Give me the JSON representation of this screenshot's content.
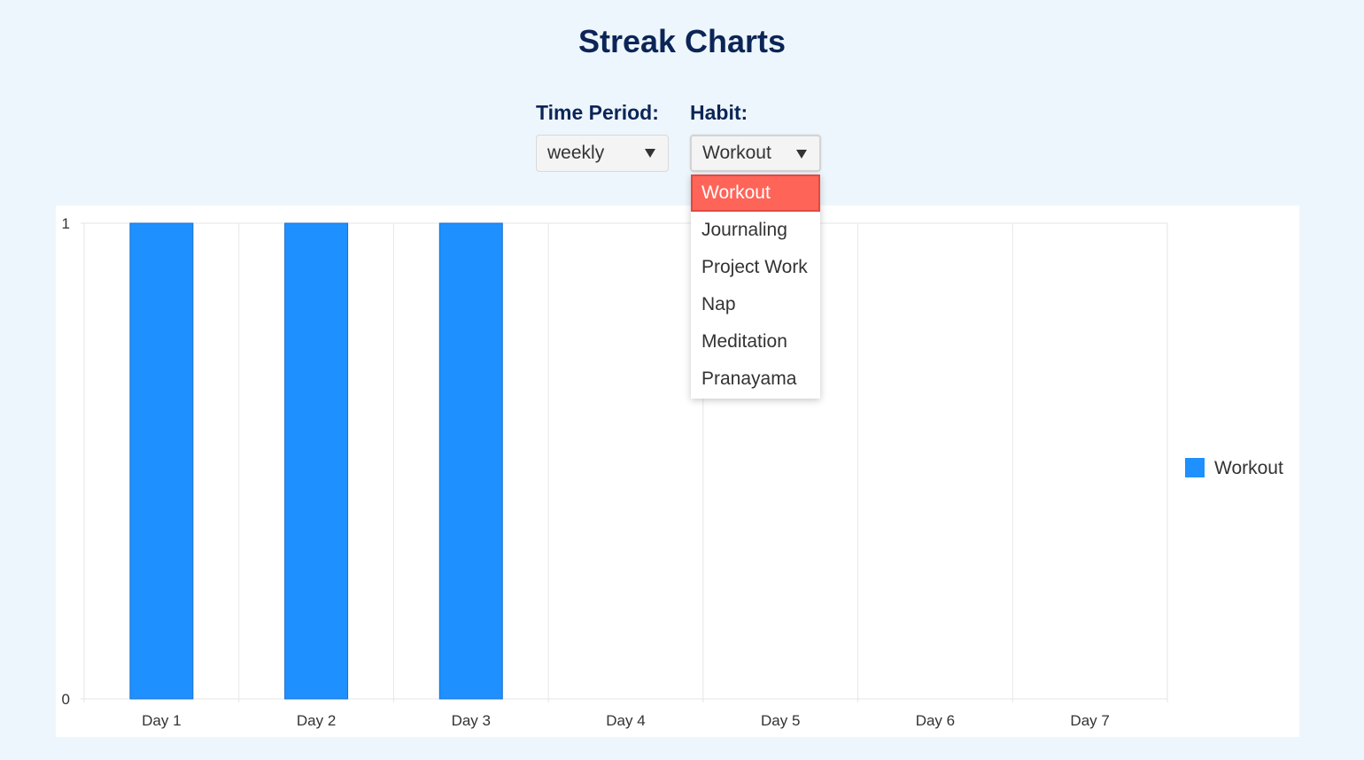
{
  "page": {
    "title": "Streak Charts"
  },
  "controls": {
    "time_period": {
      "label": "Time Period:",
      "value": "weekly"
    },
    "habit": {
      "label": "Habit:",
      "value": "Workout",
      "options": [
        "Workout",
        "Journaling",
        "Project Work",
        "Nap",
        "Meditation",
        "Pranayama"
      ],
      "selected_index": 0
    }
  },
  "colors": {
    "title": "#0b2557",
    "bar": "#1e90ff",
    "selected_option": "#ff6459",
    "grid": "#e6e6e6"
  },
  "chart_data": {
    "type": "bar",
    "categories": [
      "Day 1",
      "Day 2",
      "Day 3",
      "Day 4",
      "Day 5",
      "Day 6",
      "Day 7"
    ],
    "series": [
      {
        "name": "Workout",
        "values": [
          1,
          1,
          1,
          0,
          0,
          0,
          0
        ],
        "color": "#1e90ff"
      }
    ],
    "ylim": [
      0,
      1
    ],
    "yticks": [
      "0",
      "1"
    ],
    "grid": true,
    "legend": "right"
  }
}
